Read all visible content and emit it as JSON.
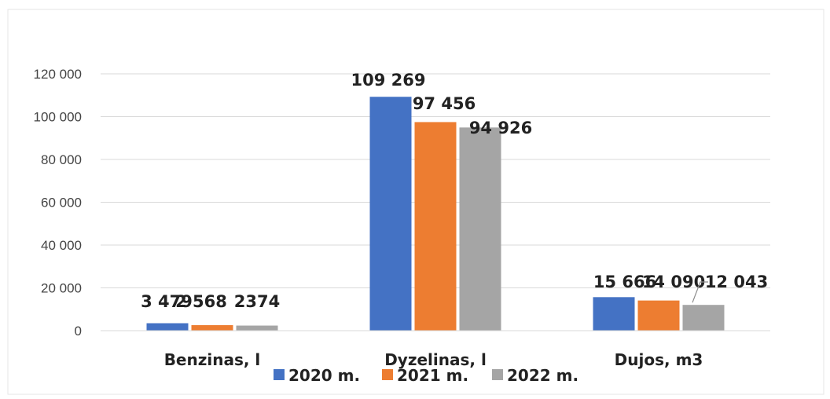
{
  "chart_data": {
    "type": "bar",
    "categories": [
      "Benzinas, l",
      "Dyzelinas, l",
      "Dujos, m3"
    ],
    "series": [
      {
        "name": "2020 m.",
        "color": "#4472C4",
        "values": [
          3479,
          109269,
          15666
        ],
        "labels": [
          "3 479",
          "109 269",
          "15 666"
        ]
      },
      {
        "name": "2021 m.",
        "color": "#ED7D31",
        "values": [
          2568,
          97456,
          14090
        ],
        "labels": [
          "2 568",
          "97 456",
          "14 090"
        ]
      },
      {
        "name": "2022 m.",
        "color": "#A5A5A5",
        "values": [
          2374,
          94926,
          12043
        ],
        "labels": [
          "2374",
          "94 926",
          "12 043"
        ]
      }
    ],
    "yticks": [
      0,
      20000,
      40000,
      60000,
      80000,
      100000,
      120000
    ],
    "ytick_labels": [
      "0",
      "20 000",
      "40 000",
      "60 000",
      "80 000",
      "100 000",
      "120 000"
    ],
    "ylim": [
      0,
      120000
    ],
    "grid": true,
    "legend": "bottom",
    "title": "",
    "xlabel": "",
    "ylabel": ""
  }
}
